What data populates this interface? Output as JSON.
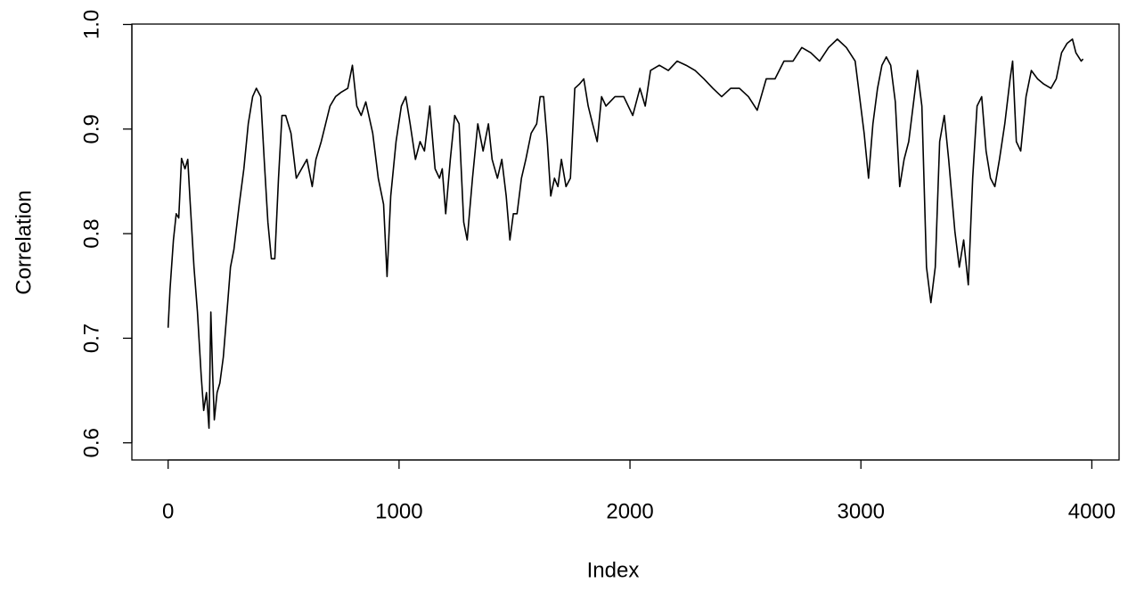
{
  "chart_data": {
    "type": "line",
    "x_label": "Index",
    "y_label": "Correlation",
    "xlim": [
      -157,
      4118
    ],
    "ylim": [
      0.5836,
      1.0004
    ],
    "xticks": [
      0,
      1000,
      2000,
      3000,
      4000
    ],
    "yticks": [
      0.6,
      0.7,
      0.8,
      0.9,
      {
        "value": 1,
        "label": "1.0"
      }
    ],
    "series": [
      {
        "color": "#000000",
        "x": [
          0,
          8,
          23,
          35,
          46,
          58,
          73,
          85,
          96,
          112,
          127,
          143,
          154,
          166,
          177,
          185,
          193,
          200,
          212,
          224,
          239,
          258,
          270,
          285,
          308,
          328,
          347,
          366,
          382,
          401,
          416,
          432,
          447,
          462,
          478,
          493,
          509,
          532,
          555,
          578,
          601,
          624,
          640,
          663,
          682,
          701,
          725,
          748,
          778,
          798,
          817,
          836,
          856,
          886,
          910,
          933,
          948,
          964,
          987,
          1010,
          1029,
          1048,
          1071,
          1091,
          1110,
          1133,
          1156,
          1175,
          1187,
          1202,
          1222,
          1241,
          1260,
          1280,
          1295,
          1318,
          1341,
          1364,
          1387,
          1403,
          1426,
          1445,
          1464,
          1480,
          1495,
          1511,
          1530,
          1549,
          1572,
          1596,
          1611,
          1626,
          1642,
          1657,
          1673,
          1688,
          1703,
          1723,
          1742,
          1761,
          1781,
          1800,
          1819,
          1838,
          1858,
          1877,
          1896,
          1935,
          1973,
          2012,
          2043,
          2066,
          2089,
          2127,
          2166,
          2204,
          2243,
          2282,
          2320,
          2359,
          2397,
          2436,
          2474,
          2513,
          2551,
          2590,
          2628,
          2667,
          2706,
          2744,
          2783,
          2821,
          2860,
          2898,
          2937,
          2975,
          3014,
          3033,
          3052,
          3072,
          3091,
          3110,
          3129,
          3149,
          3168,
          3187,
          3207,
          3226,
          3245,
          3264,
          3284,
          3303,
          3322,
          3341,
          3361,
          3380,
          3407,
          3426,
          3445,
          3465,
          3484,
          3503,
          3523,
          3542,
          3561,
          3580,
          3600,
          3623,
          3646,
          3657,
          3673,
          3692,
          3715,
          3738,
          3765,
          3792,
          3823,
          3846,
          3869,
          3893,
          3916,
          3931,
          3954,
          3962
        ],
        "values": [
          0.71,
          0.746,
          0.794,
          0.819,
          0.815,
          0.872,
          0.862,
          0.871,
          0.828,
          0.768,
          0.725,
          0.665,
          0.631,
          0.648,
          0.614,
          0.725,
          0.665,
          0.622,
          0.648,
          0.657,
          0.682,
          0.734,
          0.768,
          0.785,
          0.828,
          0.862,
          0.905,
          0.931,
          0.939,
          0.931,
          0.871,
          0.811,
          0.776,
          0.776,
          0.853,
          0.913,
          0.913,
          0.896,
          0.853,
          0.862,
          0.871,
          0.845,
          0.871,
          0.888,
          0.905,
          0.922,
          0.931,
          0.935,
          0.939,
          0.961,
          0.922,
          0.913,
          0.926,
          0.896,
          0.853,
          0.828,
          0.759,
          0.836,
          0.888,
          0.922,
          0.931,
          0.905,
          0.871,
          0.888,
          0.879,
          0.922,
          0.862,
          0.853,
          0.862,
          0.819,
          0.871,
          0.913,
          0.905,
          0.811,
          0.794,
          0.853,
          0.905,
          0.879,
          0.905,
          0.871,
          0.853,
          0.871,
          0.836,
          0.794,
          0.819,
          0.819,
          0.853,
          0.871,
          0.896,
          0.905,
          0.931,
          0.931,
          0.888,
          0.836,
          0.853,
          0.845,
          0.871,
          0.845,
          0.853,
          0.939,
          0.943,
          0.948,
          0.922,
          0.905,
          0.888,
          0.931,
          0.922,
          0.931,
          0.931,
          0.913,
          0.939,
          0.922,
          0.956,
          0.961,
          0.956,
          0.965,
          0.961,
          0.956,
          0.948,
          0.939,
          0.931,
          0.939,
          0.939,
          0.931,
          0.918,
          0.948,
          0.948,
          0.965,
          0.965,
          0.978,
          0.973,
          0.965,
          0.978,
          0.986,
          0.978,
          0.965,
          0.896,
          0.853,
          0.905,
          0.939,
          0.961,
          0.969,
          0.961,
          0.926,
          0.845,
          0.871,
          0.888,
          0.922,
          0.956,
          0.922,
          0.768,
          0.734,
          0.768,
          0.888,
          0.913,
          0.871,
          0.802,
          0.768,
          0.794,
          0.751,
          0.853,
          0.922,
          0.931,
          0.879,
          0.853,
          0.845,
          0.871,
          0.905,
          0.948,
          0.965,
          0.888,
          0.879,
          0.931,
          0.956,
          0.948,
          0.943,
          0.939,
          0.948,
          0.973,
          0.982,
          0.986,
          0.973,
          0.965,
          0.967
        ]
      }
    ]
  }
}
